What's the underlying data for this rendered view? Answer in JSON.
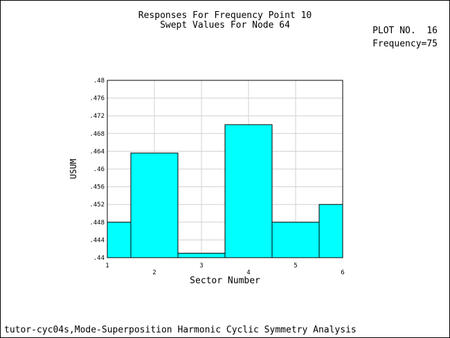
{
  "title_lines": [
    "Responses For Frequency Point 10",
    "Swept Values For Node 64"
  ],
  "plot_info": {
    "plot_no": "PLOT NO.  16",
    "frequency": "Frequency=75"
  },
  "caption": "tutor-cyc04s,Mode-Superposition Harmonic Cyclic Symmetry Analysis",
  "colors": {
    "bar": "#00ffff",
    "grid": "#d0d0d0",
    "axis": "#000000"
  },
  "chart_data": {
    "type": "bar",
    "xlabel": "Sector Number",
    "ylabel": "USUM",
    "xlim": [
      1,
      6
    ],
    "ylim": [
      0.44,
      0.48
    ],
    "x_ticks": [
      "1",
      "2",
      "3",
      "4",
      "5",
      "6"
    ],
    "y_ticks": [
      ".44",
      ".444",
      ".448",
      ".452",
      ".456",
      ".46",
      ".464",
      ".468",
      ".472",
      ".476",
      ".48"
    ],
    "bars": [
      {
        "sector": 1,
        "value": 0.448
      },
      {
        "sector": 2,
        "value": 0.4636
      },
      {
        "sector": 3,
        "value": 0.441
      },
      {
        "sector": 4,
        "value": 0.47
      },
      {
        "sector": 5,
        "value": 0.448
      },
      {
        "sector": 6,
        "value": 0.452
      }
    ],
    "grid": true
  }
}
